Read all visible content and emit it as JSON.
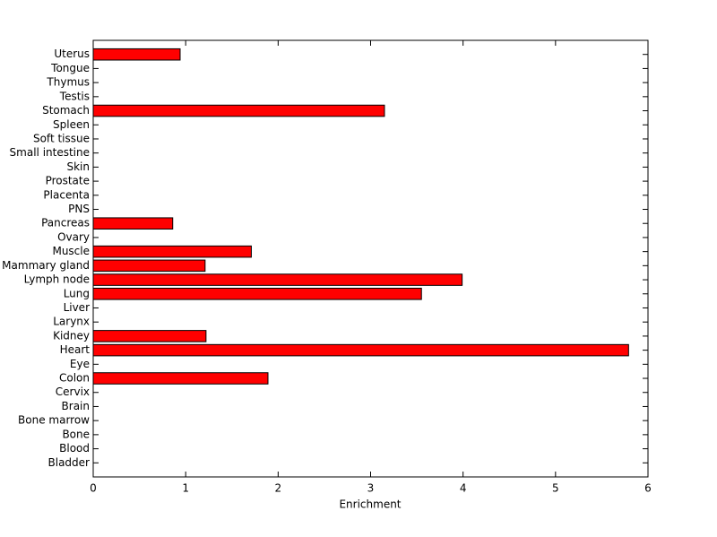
{
  "chart_data": {
    "type": "barh",
    "xlabel": "Enrichment",
    "categories": [
      "Bladder",
      "Blood",
      "Bone",
      "Bone marrow",
      "Brain",
      "Cervix",
      "Colon",
      "Eye",
      "Heart",
      "Kidney",
      "Larynx",
      "Liver",
      "Lung",
      "Lymph node",
      "Mammary gland",
      "Muscle",
      "Ovary",
      "Pancreas",
      "PNS",
      "Placenta",
      "Prostate",
      "Skin",
      "Small intestine",
      "Soft tissue",
      "Spleen",
      "Stomach",
      "Testis",
      "Thymus",
      "Tongue",
      "Uterus"
    ],
    "values": [
      0,
      0,
      0,
      0,
      0,
      0,
      1.89,
      0,
      5.79,
      1.22,
      0,
      0,
      3.55,
      3.99,
      1.21,
      1.71,
      0,
      0.86,
      0,
      0,
      0,
      0,
      0,
      0,
      0,
      3.15,
      0,
      0,
      0,
      0.94
    ],
    "color": "#ff0000",
    "xlim": [
      0,
      6
    ],
    "xticks": [
      0,
      1,
      2,
      3,
      4,
      5,
      6
    ]
  }
}
